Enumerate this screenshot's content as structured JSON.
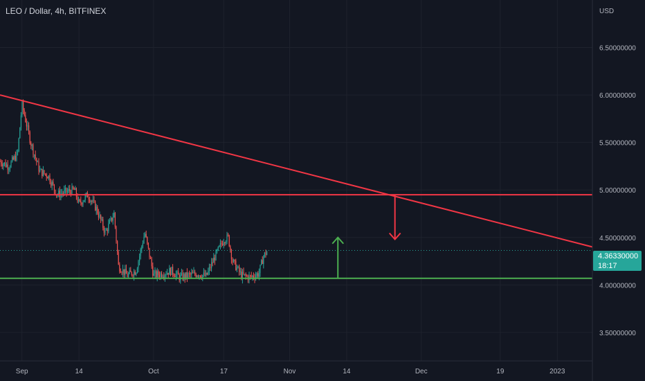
{
  "header": {
    "symbol_line": "LEO / Dollar, 4h, BITFINEX"
  },
  "axis": {
    "currency": "USD"
  },
  "last_price": {
    "value": "4.36330000",
    "countdown": "18:17"
  },
  "colors": {
    "background": "#131722",
    "grid": "#1e222d",
    "text": "#b2b5be",
    "resistance": "#f23645",
    "support": "#4caf50",
    "up_candle": "#26a69a",
    "down_candle": "#ef5350"
  },
  "chart_data": {
    "type": "candlestick",
    "title": "LEO / Dollar, 4h, BITFINEX",
    "ylabel": "USD",
    "ylim": [
      3.2,
      7.0
    ],
    "y_ticks": [
      "3.50000000",
      "4.00000000",
      "4.50000000",
      "5.00000000",
      "5.50000000",
      "6.00000000",
      "6.50000000"
    ],
    "y_tick_values": [
      3.5,
      4.0,
      4.5,
      5.0,
      5.5,
      6.0,
      6.5
    ],
    "x_ticks": [
      "Sep",
      "14",
      "Oct",
      "17",
      "Nov",
      "14",
      "Dec",
      "19",
      "2023"
    ],
    "x_tick_dates": [
      "2022-09-01",
      "2022-09-14",
      "2022-10-01",
      "2022-10-17",
      "2022-11-01",
      "2022-11-14",
      "2022-12-01",
      "2022-12-19",
      "2023-01-01"
    ],
    "xlim": [
      "2022-08-27",
      "2023-01-09"
    ],
    "price_path": [
      [
        "2022-08-27",
        5.3
      ],
      [
        "2022-08-29",
        5.25
      ],
      [
        "2022-08-31",
        5.38
      ],
      [
        "2022-09-01",
        5.9
      ],
      [
        "2022-09-03",
        5.5
      ],
      [
        "2022-09-05",
        5.2
      ],
      [
        "2022-09-07",
        5.15
      ],
      [
        "2022-09-09",
        4.95
      ],
      [
        "2022-09-11",
        4.98
      ],
      [
        "2022-09-13",
        5.0
      ],
      [
        "2022-09-14",
        4.85
      ],
      [
        "2022-09-16",
        4.95
      ],
      [
        "2022-09-18",
        4.8
      ],
      [
        "2022-09-20",
        4.55
      ],
      [
        "2022-09-22",
        4.75
      ],
      [
        "2022-09-23",
        4.2
      ],
      [
        "2022-09-25",
        4.1
      ],
      [
        "2022-09-27",
        4.15
      ],
      [
        "2022-09-29",
        4.55
      ],
      [
        "2022-10-01",
        4.1
      ],
      [
        "2022-10-03",
        4.12
      ],
      [
        "2022-10-05",
        4.15
      ],
      [
        "2022-10-07",
        4.08
      ],
      [
        "2022-10-09",
        4.1
      ],
      [
        "2022-10-11",
        4.12
      ],
      [
        "2022-10-13",
        4.09
      ],
      [
        "2022-10-15",
        4.3
      ],
      [
        "2022-10-17",
        4.48
      ],
      [
        "2022-10-18",
        4.5
      ],
      [
        "2022-10-19",
        4.25
      ],
      [
        "2022-10-21",
        4.1
      ],
      [
        "2022-10-23",
        4.08
      ],
      [
        "2022-10-25",
        4.12
      ],
      [
        "2022-10-26",
        4.3
      ],
      [
        "2022-10-27",
        4.36
      ]
    ],
    "annotations": {
      "descending_trendline": {
        "from": [
          "2022-08-27",
          6.0
        ],
        "to": [
          "2023-01-09",
          4.4
        ]
      },
      "resistance_level": 4.95,
      "support_level": 4.07,
      "last_price_line": 4.3633,
      "down_arrow": {
        "date": "2022-11-25",
        "from": 4.95,
        "to": 4.48
      },
      "up_arrow": {
        "date": "2022-11-12",
        "from": 4.07,
        "to": 4.5
      }
    }
  }
}
